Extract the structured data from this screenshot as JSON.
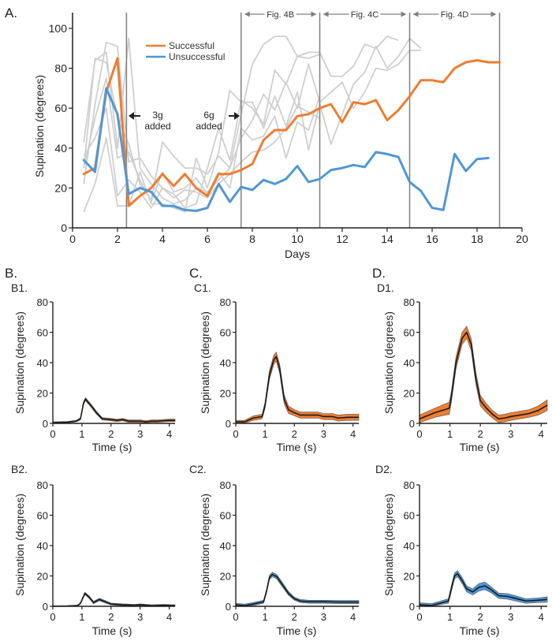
{
  "colors": {
    "successful": "#ee7d31",
    "unsuccessful": "#4f97d6",
    "individual": "#cfcfcf",
    "divider": "#808080",
    "axis": "#231f20",
    "band_success": "#ee7d31",
    "band_unsuccess": "#4f97d6"
  },
  "chart_data": [
    {
      "id": "A",
      "type": "line",
      "panel_label": "A.",
      "title": "",
      "xlabel": "Days",
      "ylabel": "Supination (degrees)",
      "xlim": [
        0,
        20
      ],
      "ylim": [
        0,
        100
      ],
      "xticks": [
        0,
        2,
        4,
        6,
        8,
        10,
        12,
        14,
        16,
        18,
        20
      ],
      "yticks": [
        0,
        20,
        40,
        60,
        80,
        100
      ],
      "legend": {
        "placement": "top-center",
        "entries": [
          "Successful",
          "Unsuccessful"
        ]
      },
      "series": [
        {
          "name": "Successful",
          "x": [
            0.5,
            1,
            1.5,
            2,
            2.5,
            3,
            3.5,
            4,
            4.5,
            5,
            5.5,
            6,
            6.5,
            7,
            7.5,
            8,
            8.5,
            9,
            9.5,
            10,
            10.5,
            11,
            11.5,
            12,
            12.5,
            13,
            13.5,
            14,
            14.5,
            15,
            15.5,
            16,
            16.5,
            17,
            17.5,
            18,
            18.5,
            19
          ],
          "y": [
            27,
            30,
            68,
            85,
            11,
            16,
            20,
            27,
            21,
            27,
            20,
            16,
            27,
            27,
            29,
            32,
            44,
            49,
            49,
            56,
            57,
            60,
            62,
            53,
            63,
            62,
            64,
            54,
            59,
            66,
            74,
            74,
            73,
            80,
            83,
            84,
            83,
            83
          ]
        },
        {
          "name": "Unsuccessful",
          "x": [
            0.5,
            1,
            1.5,
            2,
            2.5,
            3,
            3.5,
            4,
            4.5,
            5,
            5.5,
            6,
            6.5,
            7,
            7.5,
            8,
            8.5,
            9,
            9.5,
            10,
            10.5,
            11,
            11.5,
            12,
            12.5,
            13,
            13.5,
            14,
            14.5,
            15,
            15.5,
            16,
            16.5,
            17,
            17.5,
            18,
            18.5
          ],
          "y": [
            34,
            28,
            70,
            57,
            17,
            20,
            18,
            11,
            11,
            9,
            8.5,
            10,
            22,
            13,
            20.5,
            19,
            24,
            22,
            24.5,
            31,
            23,
            24.5,
            29,
            30,
            31.5,
            30.5,
            38,
            37,
            35.5,
            23,
            18.5,
            10,
            9,
            37,
            28.5,
            34.5,
            35
          ]
        },
        {
          "name": "Individual 1",
          "x": [
            0.5,
            1,
            1.5,
            2,
            2.5,
            3,
            3.5,
            4,
            4.5,
            5,
            5.5,
            6,
            6.5,
            7,
            7.5,
            8,
            8.5,
            9,
            9.5,
            10,
            10.5,
            11
          ],
          "y": [
            43,
            84,
            88,
            40,
            95,
            30,
            22,
            15,
            12,
            14,
            20,
            18,
            24,
            30,
            57,
            82,
            92,
            96,
            96,
            86,
            85,
            87
          ]
        },
        {
          "name": "Individual 2",
          "x": [
            0.5,
            1,
            1.5,
            2,
            2.5,
            3,
            3.5,
            4,
            4.5,
            5,
            5.5,
            6,
            6.5,
            7,
            7.5,
            8,
            8.5,
            9,
            9.5,
            10,
            10.5,
            11,
            11.5,
            12,
            12.5,
            13,
            13.5,
            14,
            14.5
          ],
          "y": [
            22,
            62,
            93,
            91,
            33,
            35,
            26,
            20,
            17,
            10,
            12,
            30,
            50,
            34,
            64,
            60,
            52,
            79,
            72,
            86,
            88,
            88,
            76,
            76,
            81,
            92,
            90,
            96,
            94
          ]
        },
        {
          "name": "Individual 3",
          "x": [
            0.5,
            1,
            1.5,
            2,
            2.5,
            3,
            3.5,
            4,
            4.5,
            5,
            5.5,
            6,
            6.5,
            7,
            7.5,
            8,
            8.5,
            9,
            9.5,
            10,
            10.5,
            11,
            11.5,
            12,
            12.5,
            13,
            13.5,
            14,
            14.5,
            15,
            15.5
          ],
          "y": [
            30,
            85,
            83,
            55,
            42,
            22,
            14,
            43,
            36,
            30,
            30,
            27,
            36,
            30,
            45,
            54,
            67,
            59,
            73,
            60,
            82,
            63,
            68,
            73,
            60,
            68,
            80,
            79,
            82,
            89,
            89
          ]
        },
        {
          "name": "Individual 4",
          "x": [
            0.5,
            1,
            1.5,
            2,
            2.5,
            3,
            3.5,
            4,
            4.5,
            5,
            5.5,
            6,
            6.5,
            7,
            7.5,
            8,
            8.5,
            9,
            9.5,
            10,
            10.5,
            11,
            11.5,
            12,
            12.5,
            13,
            13.5,
            14,
            14.5,
            15,
            15.5
          ],
          "y": [
            8,
            22,
            45,
            11,
            11,
            28,
            12,
            12,
            10,
            8,
            35,
            20,
            38,
            69,
            63,
            63,
            50,
            66,
            51,
            68,
            39,
            62,
            42,
            57,
            72,
            78,
            91,
            80,
            86,
            95,
            90
          ]
        },
        {
          "name": "Individual 5",
          "x": [
            0.5,
            1,
            1.5,
            2,
            2.5,
            3,
            3.5,
            4,
            4.5,
            5,
            5.5,
            6,
            6.5,
            7,
            7.5,
            8,
            8.5,
            9,
            9.5,
            10,
            10.5,
            11
          ],
          "y": [
            30,
            55,
            75,
            35,
            38,
            24,
            13,
            28,
            18,
            20,
            25,
            17,
            28,
            20,
            50,
            44,
            46,
            56,
            35,
            53,
            49,
            66
          ]
        },
        {
          "name": "Individual 6",
          "x": [
            0.5,
            1,
            1.5,
            2,
            2.5,
            3,
            3.5,
            4,
            4.5,
            5,
            5.5,
            6,
            6.5,
            7,
            7.5,
            8,
            8.5,
            9,
            9.5,
            10,
            10.5,
            11
          ],
          "y": [
            36,
            45,
            60,
            16,
            24,
            18,
            10,
            20,
            15,
            19,
            18,
            15,
            22,
            27,
            33,
            38,
            39,
            43,
            50,
            61,
            58,
            55
          ]
        }
      ],
      "vertical_lines": [
        2.4,
        7.5,
        11,
        15,
        19
      ],
      "annotations": [
        {
          "text_lines": [
            "3g",
            "added"
          ],
          "arrow": "left",
          "x": 2.4,
          "y": 56
        },
        {
          "text_lines": [
            "6g",
            "added"
          ],
          "arrow": "right",
          "x": 7.5,
          "y": 56
        }
      ],
      "range_labels": [
        {
          "text": "Fig. 4B",
          "from": 7.5,
          "to": 11
        },
        {
          "text": "Fig. 4C",
          "from": 11,
          "to": 15
        },
        {
          "text": "Fig. 4D",
          "from": 15,
          "to": 19
        }
      ]
    },
    {
      "id": "B1",
      "group_label": "B.",
      "panel_label": "B1.",
      "type": "area",
      "band_color": "successful",
      "xlabel": "Time (s)",
      "ylabel": "Supination (degrees)",
      "xlim": [
        0,
        4.2
      ],
      "ylim": [
        0,
        80
      ],
      "xticks": [
        0,
        1,
        2,
        3,
        4
      ],
      "yticks": [
        0,
        20,
        40,
        60,
        80
      ],
      "x": [
        0,
        0.5,
        0.8,
        0.95,
        1.05,
        1.12,
        1.3,
        1.5,
        1.7,
        2,
        2.2,
        2.4,
        2.6,
        2.8,
        3,
        3.2,
        3.4,
        3.6,
        3.8,
        4,
        4.2
      ],
      "mean": [
        0.5,
        0.8,
        1.5,
        3,
        13,
        16,
        12,
        7,
        3,
        2.5,
        2,
        2.5,
        1.5,
        1.5,
        1.5,
        1,
        1.5,
        1.5,
        1.8,
        2,
        2
      ],
      "sem": [
        0.5,
        0.5,
        0.5,
        0.7,
        1,
        1,
        1,
        1,
        0.8,
        0.8,
        0.8,
        0.8,
        0.8,
        0.8,
        0.8,
        0.8,
        0.8,
        0.8,
        0.8,
        0.8,
        0.8
      ]
    },
    {
      "id": "B2",
      "panel_label": "B2.",
      "type": "area",
      "band_color": "unsuccessful",
      "xlabel": "Time (s)",
      "ylabel": "Supination (degrees)",
      "xlim": [
        0,
        4.2
      ],
      "ylim": [
        0,
        80
      ],
      "xticks": [
        0,
        1,
        2,
        3,
        4
      ],
      "yticks": [
        0,
        20,
        40,
        60,
        80
      ],
      "x": [
        0,
        0.5,
        0.85,
        0.95,
        1.1,
        1.25,
        1.4,
        1.6,
        1.8,
        2,
        2.4,
        2.8,
        3,
        3.4,
        3.8,
        4.2
      ],
      "mean": [
        0,
        0.2,
        0.5,
        2,
        8.5,
        6,
        2.5,
        4.5,
        3,
        1.5,
        1,
        0.7,
        1,
        0.4,
        0.7,
        0.4
      ],
      "sem": [
        0.3,
        0.3,
        0.3,
        0.5,
        0.8,
        0.8,
        0.8,
        0.8,
        0.8,
        0.6,
        0.6,
        0.6,
        0.6,
        0.6,
        0.6,
        0.6
      ]
    },
    {
      "id": "C1",
      "group_label": "C.",
      "panel_label": "C1.",
      "type": "area",
      "band_color": "successful",
      "xlabel": "Time (s)",
      "ylabel": "Supination (degrees)",
      "xlim": [
        0,
        4.2
      ],
      "ylim": [
        0,
        80
      ],
      "xticks": [
        0,
        1,
        2,
        3,
        4
      ],
      "yticks": [
        0,
        20,
        40,
        60,
        80
      ],
      "x": [
        0,
        0.3,
        0.6,
        0.9,
        1.0,
        1.15,
        1.3,
        1.38,
        1.5,
        1.65,
        1.8,
        2,
        2.2,
        2.5,
        2.8,
        3,
        3.3,
        3.5,
        3.8,
        4.2
      ],
      "mean": [
        1,
        1,
        3.5,
        4.5,
        12,
        32,
        42,
        44,
        36,
        16,
        9,
        7,
        5.5,
        5.5,
        5.5,
        4.5,
        4.5,
        3.5,
        4,
        4
      ],
      "sem": [
        1,
        1,
        1.5,
        1.5,
        2,
        3,
        3,
        3,
        3,
        3,
        2.5,
        2,
        2,
        2,
        2,
        2,
        2,
        2,
        2,
        2
      ]
    },
    {
      "id": "C2",
      "panel_label": "C2.",
      "type": "area",
      "band_color": "unsuccessful",
      "xlabel": "Time (s)",
      "ylabel": "Supination (degrees)",
      "xlim": [
        0,
        4.2
      ],
      "ylim": [
        0,
        80
      ],
      "xticks": [
        0,
        1,
        2,
        3,
        4
      ],
      "yticks": [
        0,
        20,
        40,
        60,
        80
      ],
      "x": [
        0,
        0.3,
        0.6,
        0.95,
        1.05,
        1.15,
        1.25,
        1.4,
        1.6,
        1.8,
        2,
        2.2,
        2.5,
        3,
        3.5,
        4.2
      ],
      "mean": [
        1,
        0.5,
        1.5,
        3,
        10,
        19,
        21,
        19.5,
        14,
        8.5,
        5,
        3.5,
        3,
        3,
        2.8,
        2.8
      ],
      "sem": [
        1,
        1,
        1,
        1,
        1.2,
        1.5,
        1.5,
        1.5,
        1.5,
        1.2,
        1,
        1,
        1,
        1,
        1,
        1
      ]
    },
    {
      "id": "D1",
      "group_label": "D.",
      "panel_label": "D1.",
      "type": "area",
      "band_color": "successful",
      "xlabel": "Time (s)",
      "ylabel": "Supination (degrees)",
      "xlim": [
        0,
        4.2
      ],
      "ylim": [
        0,
        80
      ],
      "xticks": [
        0,
        1,
        2,
        3,
        4
      ],
      "yticks": [
        0,
        20,
        40,
        60,
        80
      ],
      "x": [
        0,
        0.5,
        0.98,
        1.05,
        1.2,
        1.4,
        1.55,
        1.7,
        1.85,
        2.0,
        2.2,
        2.4,
        2.6,
        2.8,
        3.0,
        3.3,
        3.6,
        3.9,
        4.2
      ],
      "mean": [
        3,
        7,
        10,
        18,
        40,
        56,
        60,
        52,
        30,
        15,
        10,
        6,
        3,
        3.5,
        4.5,
        5.5,
        6.5,
        8.5,
        12
      ],
      "sem": [
        2.5,
        3,
        4,
        3.5,
        4,
        4,
        4,
        4,
        4,
        3.5,
        3,
        2.5,
        2.5,
        2.5,
        2.5,
        2.5,
        2.5,
        3,
        3.5
      ]
    },
    {
      "id": "D2",
      "panel_label": "D2.",
      "type": "area",
      "band_color": "unsuccessful",
      "xlabel": "Time (s)",
      "ylabel": "Supination (degrees)",
      "xlim": [
        0,
        4.2
      ],
      "ylim": [
        0,
        80
      ],
      "xticks": [
        0,
        1,
        2,
        3,
        4
      ],
      "yticks": [
        0,
        20,
        40,
        60,
        80
      ],
      "x": [
        0,
        0.4,
        0.95,
        1.05,
        1.15,
        1.25,
        1.4,
        1.55,
        1.75,
        1.95,
        2.15,
        2.35,
        2.6,
        2.9,
        3.1,
        3.5,
        3.9,
        4.2
      ],
      "mean": [
        1,
        0.5,
        3.5,
        12,
        20,
        21.5,
        17,
        11.5,
        9.5,
        12.5,
        13.5,
        11,
        7,
        6.5,
        5.5,
        3.5,
        4,
        4.5
      ],
      "sem": [
        1.3,
        1.3,
        1.5,
        2,
        2,
        2,
        2,
        2,
        2,
        2.5,
        2.5,
        2,
        1.8,
        1.8,
        1.8,
        1.5,
        1.5,
        1.8
      ]
    }
  ]
}
